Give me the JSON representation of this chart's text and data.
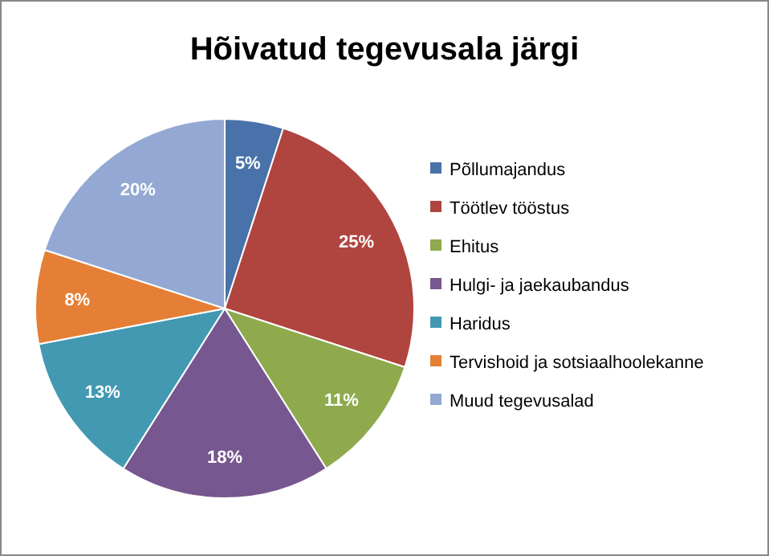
{
  "chart_data": {
    "type": "pie",
    "title": "Hõivatud tegevusala järgi",
    "categories": [
      "Põllumajandus",
      "Töötlev tööstus",
      "Ehitus",
      "Hulgi- ja jaekaubandus",
      "Haridus",
      "Tervishoid ja sotsiaalhoolekanne",
      "Muud tegevusalad"
    ],
    "values": [
      5,
      25,
      11,
      18,
      13,
      8,
      20
    ],
    "value_labels": [
      "5%",
      "25%",
      "11%",
      "18%",
      "13%",
      "8%",
      "20%"
    ],
    "colors": [
      "#4a72aa",
      "#b0443f",
      "#8eaa4c",
      "#77578f",
      "#4299b1",
      "#e57f36",
      "#93a9d3"
    ],
    "legend": "right"
  }
}
